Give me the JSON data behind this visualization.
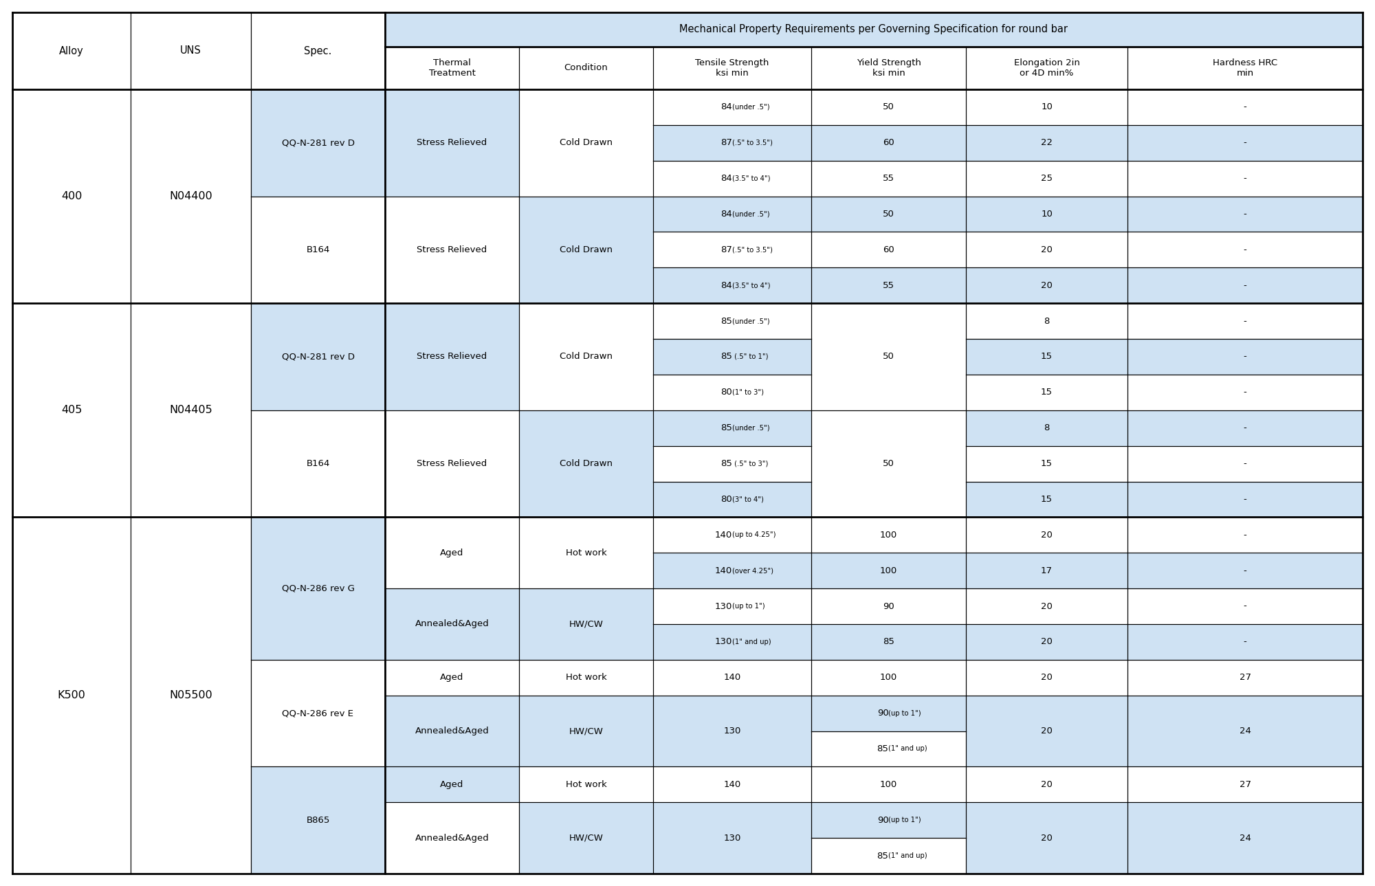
{
  "header_main": "Mechanical Property Requirements per Governing Specification for round bar",
  "col_headers": [
    "Alloy",
    "UNS",
    "Spec.",
    "Thermal\nTreatment",
    "Condition",
    "Tensile Strength\nksi min",
    "Yield Strength\nksi min",
    "Elongation 2in\nor 4D min%",
    "Hardness HRC\nmin"
  ],
  "bg_light": "#cfe2f3",
  "bg_white": "#ffffff",
  "border_color": "#000000"
}
